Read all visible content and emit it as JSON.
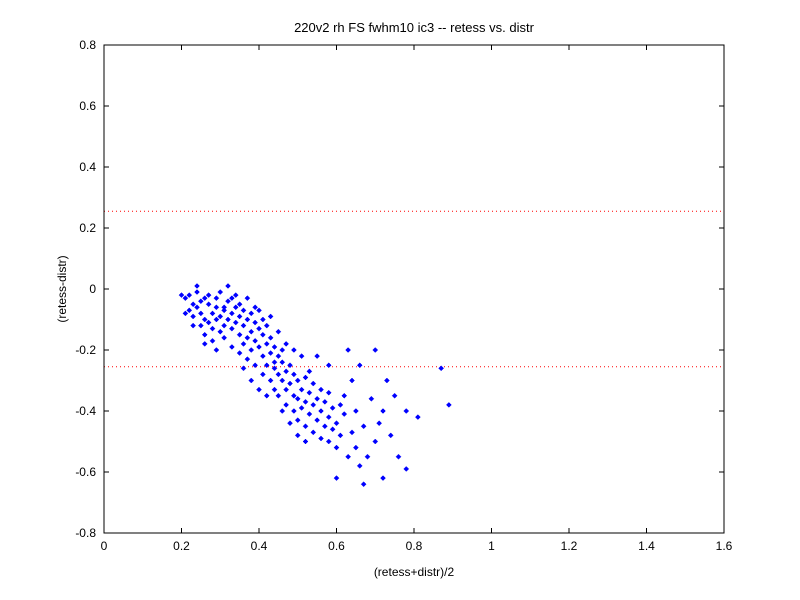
{
  "chart_data": {
    "type": "scatter",
    "title": "220v2 rh FS fwhm10 ic3 -- retess vs. distr",
    "xlabel": "(retess+distr)/2",
    "ylabel": "(retess-distr)",
    "xlim": [
      0,
      1.6
    ],
    "ylim": [
      -0.8,
      0.8
    ],
    "x_ticks": [
      "0",
      "0.2",
      "0.4",
      "0.6",
      "0.8",
      "1",
      "1.2",
      "1.4",
      "1.6"
    ],
    "y_ticks": [
      "-0.8",
      "-0.6",
      "-0.4",
      "-0.2",
      "0",
      "0.2",
      "0.4",
      "0.6",
      "0.8"
    ],
    "grid": false,
    "reference_lines": [
      {
        "orientation": "horizontal",
        "y": 0.255,
        "style": "dotted",
        "color": "#ff0000"
      },
      {
        "orientation": "horizontal",
        "y": -0.255,
        "style": "dotted",
        "color": "#ff0000"
      }
    ],
    "marker_color": "#0000ff",
    "series": [
      {
        "points": [
          [
            0.2,
            -0.02
          ],
          [
            0.21,
            -0.03
          ],
          [
            0.22,
            -0.07
          ],
          [
            0.22,
            -0.02
          ],
          [
            0.23,
            -0.05
          ],
          [
            0.23,
            -0.09
          ],
          [
            0.24,
            -0.01
          ],
          [
            0.24,
            -0.06
          ],
          [
            0.24,
            0.01
          ],
          [
            0.25,
            -0.04
          ],
          [
            0.25,
            -0.08
          ],
          [
            0.25,
            -0.12
          ],
          [
            0.26,
            -0.03
          ],
          [
            0.26,
            -0.1
          ],
          [
            0.26,
            -0.15
          ],
          [
            0.27,
            -0.05
          ],
          [
            0.27,
            -0.11
          ],
          [
            0.27,
            -0.02
          ],
          [
            0.28,
            -0.08
          ],
          [
            0.28,
            -0.13
          ],
          [
            0.28,
            -0.17
          ],
          [
            0.29,
            -0.06
          ],
          [
            0.29,
            -0.1
          ],
          [
            0.29,
            -0.03
          ],
          [
            0.3,
            -0.09
          ],
          [
            0.3,
            -0.14
          ],
          [
            0.3,
            -0.01
          ],
          [
            0.31,
            -0.07
          ],
          [
            0.31,
            -0.12
          ],
          [
            0.31,
            -0.16
          ],
          [
            0.32,
            -0.04
          ],
          [
            0.32,
            -0.1
          ],
          [
            0.32,
            0.01
          ],
          [
            0.33,
            -0.08
          ],
          [
            0.33,
            -0.13
          ],
          [
            0.33,
            -0.19
          ],
          [
            0.34,
            -0.06
          ],
          [
            0.34,
            -0.11
          ],
          [
            0.34,
            -0.02
          ],
          [
            0.35,
            -0.09
          ],
          [
            0.35,
            -0.15
          ],
          [
            0.35,
            -0.21
          ],
          [
            0.36,
            -0.07
          ],
          [
            0.36,
            -0.12
          ],
          [
            0.36,
            -0.18
          ],
          [
            0.37,
            -0.1
          ],
          [
            0.37,
            -0.16
          ],
          [
            0.37,
            -0.23
          ],
          [
            0.38,
            -0.08
          ],
          [
            0.38,
            -0.14
          ],
          [
            0.38,
            -0.2
          ],
          [
            0.39,
            -0.11
          ],
          [
            0.39,
            -0.17
          ],
          [
            0.39,
            -0.25
          ],
          [
            0.4,
            -0.13
          ],
          [
            0.4,
            -0.19
          ],
          [
            0.4,
            -0.07
          ],
          [
            0.41,
            -0.15
          ],
          [
            0.41,
            -0.22
          ],
          [
            0.41,
            -0.28
          ],
          [
            0.42,
            -0.12
          ],
          [
            0.42,
            -0.18
          ],
          [
            0.42,
            -0.25
          ],
          [
            0.43,
            -0.16
          ],
          [
            0.43,
            -0.21
          ],
          [
            0.43,
            -0.3
          ],
          [
            0.44,
            -0.19
          ],
          [
            0.44,
            -0.26
          ],
          [
            0.44,
            -0.33
          ],
          [
            0.45,
            -0.22
          ],
          [
            0.45,
            -0.28
          ],
          [
            0.45,
            -0.35
          ],
          [
            0.46,
            -0.24
          ],
          [
            0.46,
            -0.3
          ],
          [
            0.46,
            -0.2
          ],
          [
            0.47,
            -0.27
          ],
          [
            0.47,
            -0.33
          ],
          [
            0.47,
            -0.38
          ],
          [
            0.48,
            -0.25
          ],
          [
            0.48,
            -0.31
          ],
          [
            0.49,
            -0.28
          ],
          [
            0.49,
            -0.35
          ],
          [
            0.49,
            -0.4
          ],
          [
            0.5,
            -0.3
          ],
          [
            0.5,
            -0.36
          ],
          [
            0.5,
            -0.43
          ],
          [
            0.51,
            -0.33
          ],
          [
            0.51,
            -0.39
          ],
          [
            0.52,
            -0.29
          ],
          [
            0.52,
            -0.37
          ],
          [
            0.52,
            -0.45
          ],
          [
            0.53,
            -0.34
          ],
          [
            0.53,
            -0.41
          ],
          [
            0.54,
            -0.31
          ],
          [
            0.54,
            -0.38
          ],
          [
            0.54,
            -0.47
          ],
          [
            0.55,
            -0.36
          ],
          [
            0.55,
            -0.43
          ],
          [
            0.56,
            -0.33
          ],
          [
            0.56,
            -0.4
          ],
          [
            0.57,
            -0.45
          ],
          [
            0.57,
            -0.37
          ],
          [
            0.58,
            -0.42
          ],
          [
            0.58,
            -0.5
          ],
          [
            0.59,
            -0.39
          ],
          [
            0.59,
            -0.46
          ],
          [
            0.6,
            -0.44
          ],
          [
            0.6,
            -0.52
          ],
          [
            0.61,
            -0.48
          ],
          [
            0.62,
            -0.41
          ],
          [
            0.63,
            -0.55
          ],
          [
            0.64,
            -0.47
          ],
          [
            0.65,
            -0.52
          ],
          [
            0.66,
            -0.58
          ],
          [
            0.67,
            -0.45
          ],
          [
            0.68,
            -0.55
          ],
          [
            0.7,
            -0.5
          ],
          [
            0.72,
            -0.62
          ],
          [
            0.74,
            -0.48
          ],
          [
            0.76,
            -0.55
          ],
          [
            0.6,
            -0.62
          ],
          [
            0.67,
            -0.64
          ],
          [
            0.78,
            -0.59
          ],
          [
            0.81,
            -0.42
          ],
          [
            0.87,
            -0.26
          ],
          [
            0.89,
            -0.38
          ],
          [
            0.7,
            -0.2
          ],
          [
            0.75,
            -0.35
          ],
          [
            0.66,
            -0.25
          ],
          [
            0.64,
            -0.3
          ],
          [
            0.72,
            -0.4
          ],
          [
            0.78,
            -0.4
          ],
          [
            0.62,
            -0.35
          ],
          [
            0.58,
            -0.25
          ],
          [
            0.55,
            -0.22
          ],
          [
            0.63,
            -0.2
          ],
          [
            0.21,
            -0.08
          ],
          [
            0.23,
            -0.12
          ],
          [
            0.26,
            -0.18
          ],
          [
            0.29,
            -0.2
          ],
          [
            0.31,
            -0.06
          ],
          [
            0.33,
            -0.03
          ],
          [
            0.35,
            -0.05
          ],
          [
            0.37,
            -0.03
          ],
          [
            0.39,
            -0.06
          ],
          [
            0.41,
            -0.1
          ],
          [
            0.43,
            -0.09
          ],
          [
            0.45,
            -0.14
          ],
          [
            0.47,
            -0.18
          ],
          [
            0.49,
            -0.2
          ],
          [
            0.51,
            -0.22
          ],
          [
            0.53,
            -0.27
          ],
          [
            0.36,
            -0.26
          ],
          [
            0.38,
            -0.3
          ],
          [
            0.4,
            -0.33
          ],
          [
            0.42,
            -0.35
          ],
          [
            0.44,
            -0.24
          ],
          [
            0.46,
            -0.4
          ],
          [
            0.48,
            -0.44
          ],
          [
            0.5,
            -0.48
          ],
          [
            0.52,
            -0.5
          ],
          [
            0.56,
            -0.49
          ],
          [
            0.58,
            -0.34
          ],
          [
            0.61,
            -0.38
          ],
          [
            0.65,
            -0.4
          ],
          [
            0.69,
            -0.36
          ],
          [
            0.71,
            -0.44
          ],
          [
            0.73,
            -0.3
          ]
        ]
      }
    ]
  }
}
